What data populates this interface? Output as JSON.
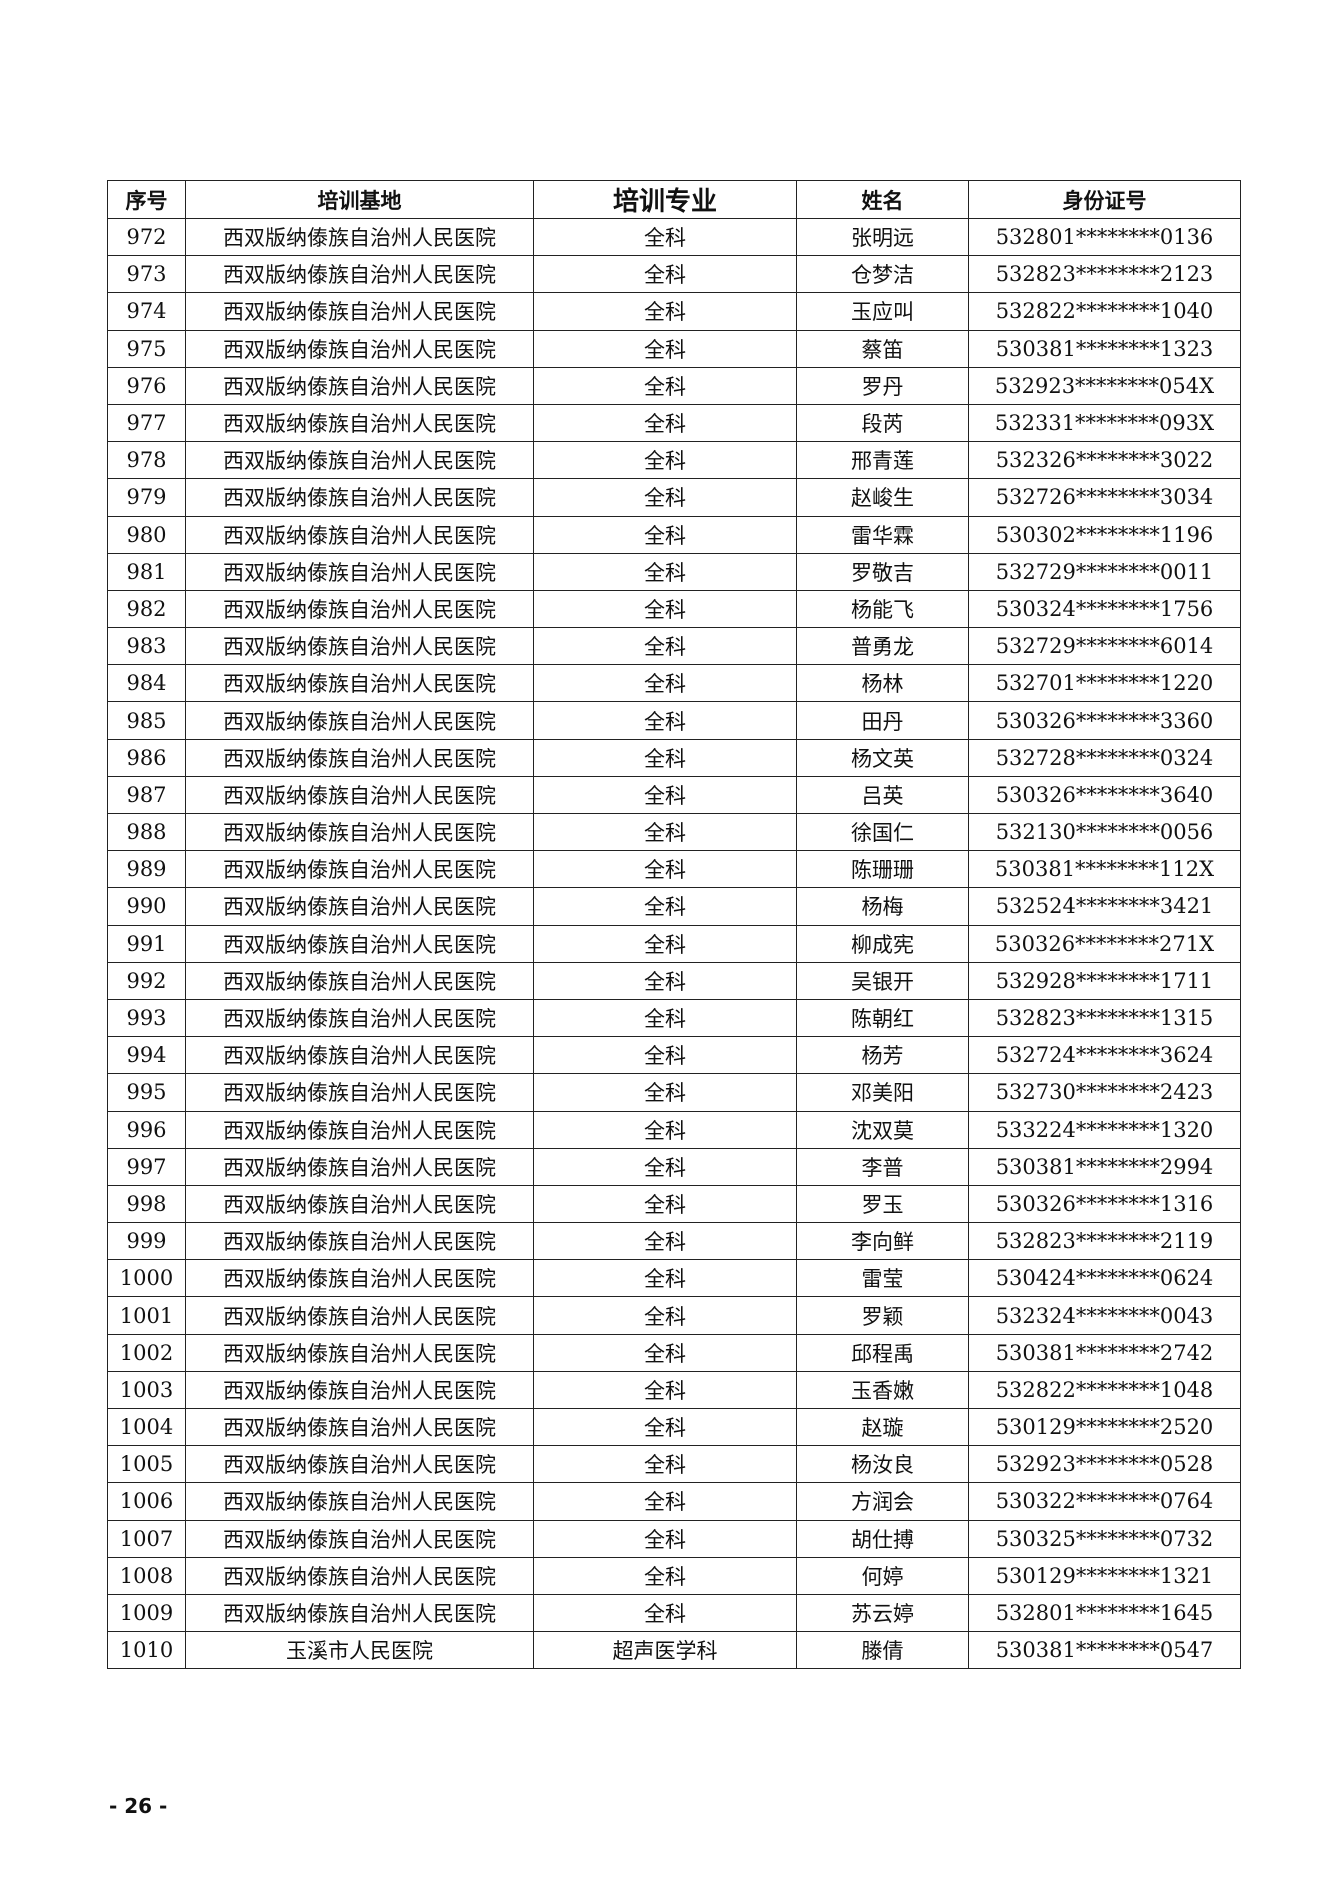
{
  "table": {
    "headers": [
      "序号",
      "培训基地",
      "培训专业",
      "姓名",
      "身份证号"
    ],
    "rows": [
      [
        "972",
        "西双版纳傣族自治州人民医院",
        "全科",
        "张明远",
        "532801********0136"
      ],
      [
        "973",
        "西双版纳傣族自治州人民医院",
        "全科",
        "仓梦洁",
        "532823********2123"
      ],
      [
        "974",
        "西双版纳傣族自治州人民医院",
        "全科",
        "玉应叫",
        "532822********1040"
      ],
      [
        "975",
        "西双版纳傣族自治州人民医院",
        "全科",
        "蔡笛",
        "530381********1323"
      ],
      [
        "976",
        "西双版纳傣族自治州人民医院",
        "全科",
        "罗丹",
        "532923********054X"
      ],
      [
        "977",
        "西双版纳傣族自治州人民医院",
        "全科",
        "段芮",
        "532331********093X"
      ],
      [
        "978",
        "西双版纳傣族自治州人民医院",
        "全科",
        "邢青莲",
        "532326********3022"
      ],
      [
        "979",
        "西双版纳傣族自治州人民医院",
        "全科",
        "赵峻生",
        "532726********3034"
      ],
      [
        "980",
        "西双版纳傣族自治州人民医院",
        "全科",
        "雷华霖",
        "530302********1196"
      ],
      [
        "981",
        "西双版纳傣族自治州人民医院",
        "全科",
        "罗敬吉",
        "532729********0011"
      ],
      [
        "982",
        "西双版纳傣族自治州人民医院",
        "全科",
        "杨能飞",
        "530324********1756"
      ],
      [
        "983",
        "西双版纳傣族自治州人民医院",
        "全科",
        "普勇龙",
        "532729********6014"
      ],
      [
        "984",
        "西双版纳傣族自治州人民医院",
        "全科",
        "杨林",
        "532701********1220"
      ],
      [
        "985",
        "西双版纳傣族自治州人民医院",
        "全科",
        "田丹",
        "530326********3360"
      ],
      [
        "986",
        "西双版纳傣族自治州人民医院",
        "全科",
        "杨文英",
        "532728********0324"
      ],
      [
        "987",
        "西双版纳傣族自治州人民医院",
        "全科",
        "吕英",
        "530326********3640"
      ],
      [
        "988",
        "西双版纳傣族自治州人民医院",
        "全科",
        "徐国仁",
        "532130********0056"
      ],
      [
        "989",
        "西双版纳傣族自治州人民医院",
        "全科",
        "陈珊珊",
        "530381********112X"
      ],
      [
        "990",
        "西双版纳傣族自治州人民医院",
        "全科",
        "杨梅",
        "532524********3421"
      ],
      [
        "991",
        "西双版纳傣族自治州人民医院",
        "全科",
        "柳成宪",
        "530326********271X"
      ],
      [
        "992",
        "西双版纳傣族自治州人民医院",
        "全科",
        "吴银开",
        "532928********1711"
      ],
      [
        "993",
        "西双版纳傣族自治州人民医院",
        "全科",
        "陈朝红",
        "532823********1315"
      ],
      [
        "994",
        "西双版纳傣族自治州人民医院",
        "全科",
        "杨芳",
        "532724********3624"
      ],
      [
        "995",
        "西双版纳傣族自治州人民医院",
        "全科",
        "邓美阳",
        "532730********2423"
      ],
      [
        "996",
        "西双版纳傣族自治州人民医院",
        "全科",
        "沈双莫",
        "533224********1320"
      ],
      [
        "997",
        "西双版纳傣族自治州人民医院",
        "全科",
        "李普",
        "530381********2994"
      ],
      [
        "998",
        "西双版纳傣族自治州人民医院",
        "全科",
        "罗玉",
        "530326********1316"
      ],
      [
        "999",
        "西双版纳傣族自治州人民医院",
        "全科",
        "李向鲜",
        "532823********2119"
      ],
      [
        "1000",
        "西双版纳傣族自治州人民医院",
        "全科",
        "雷莹",
        "530424********0624"
      ],
      [
        "1001",
        "西双版纳傣族自治州人民医院",
        "全科",
        "罗颖",
        "532324********0043"
      ],
      [
        "1002",
        "西双版纳傣族自治州人民医院",
        "全科",
        "邱程禹",
        "530381********2742"
      ],
      [
        "1003",
        "西双版纳傣族自治州人民医院",
        "全科",
        "玉香嫩",
        "532822********1048"
      ],
      [
        "1004",
        "西双版纳傣族自治州人民医院",
        "全科",
        "赵璇",
        "530129********2520"
      ],
      [
        "1005",
        "西双版纳傣族自治州人民医院",
        "全科",
        "杨汝良",
        "532923********0528"
      ],
      [
        "1006",
        "西双版纳傣族自治州人民医院",
        "全科",
        "方润会",
        "530322********0764"
      ],
      [
        "1007",
        "西双版纳傣族自治州人民医院",
        "全科",
        "胡仕搏",
        "530325********0732"
      ],
      [
        "1008",
        "西双版纳傣族自治州人民医院",
        "全科",
        "何婷",
        "530129********1321"
      ],
      [
        "1009",
        "西双版纳傣族自治州人民医院",
        "全科",
        "苏云婷",
        "532801********1645"
      ],
      [
        "1010",
        "玉溪市人民医院",
        "超声医学科",
        "滕倩",
        "530381********0547"
      ]
    ]
  },
  "page_number": "- 26 -"
}
